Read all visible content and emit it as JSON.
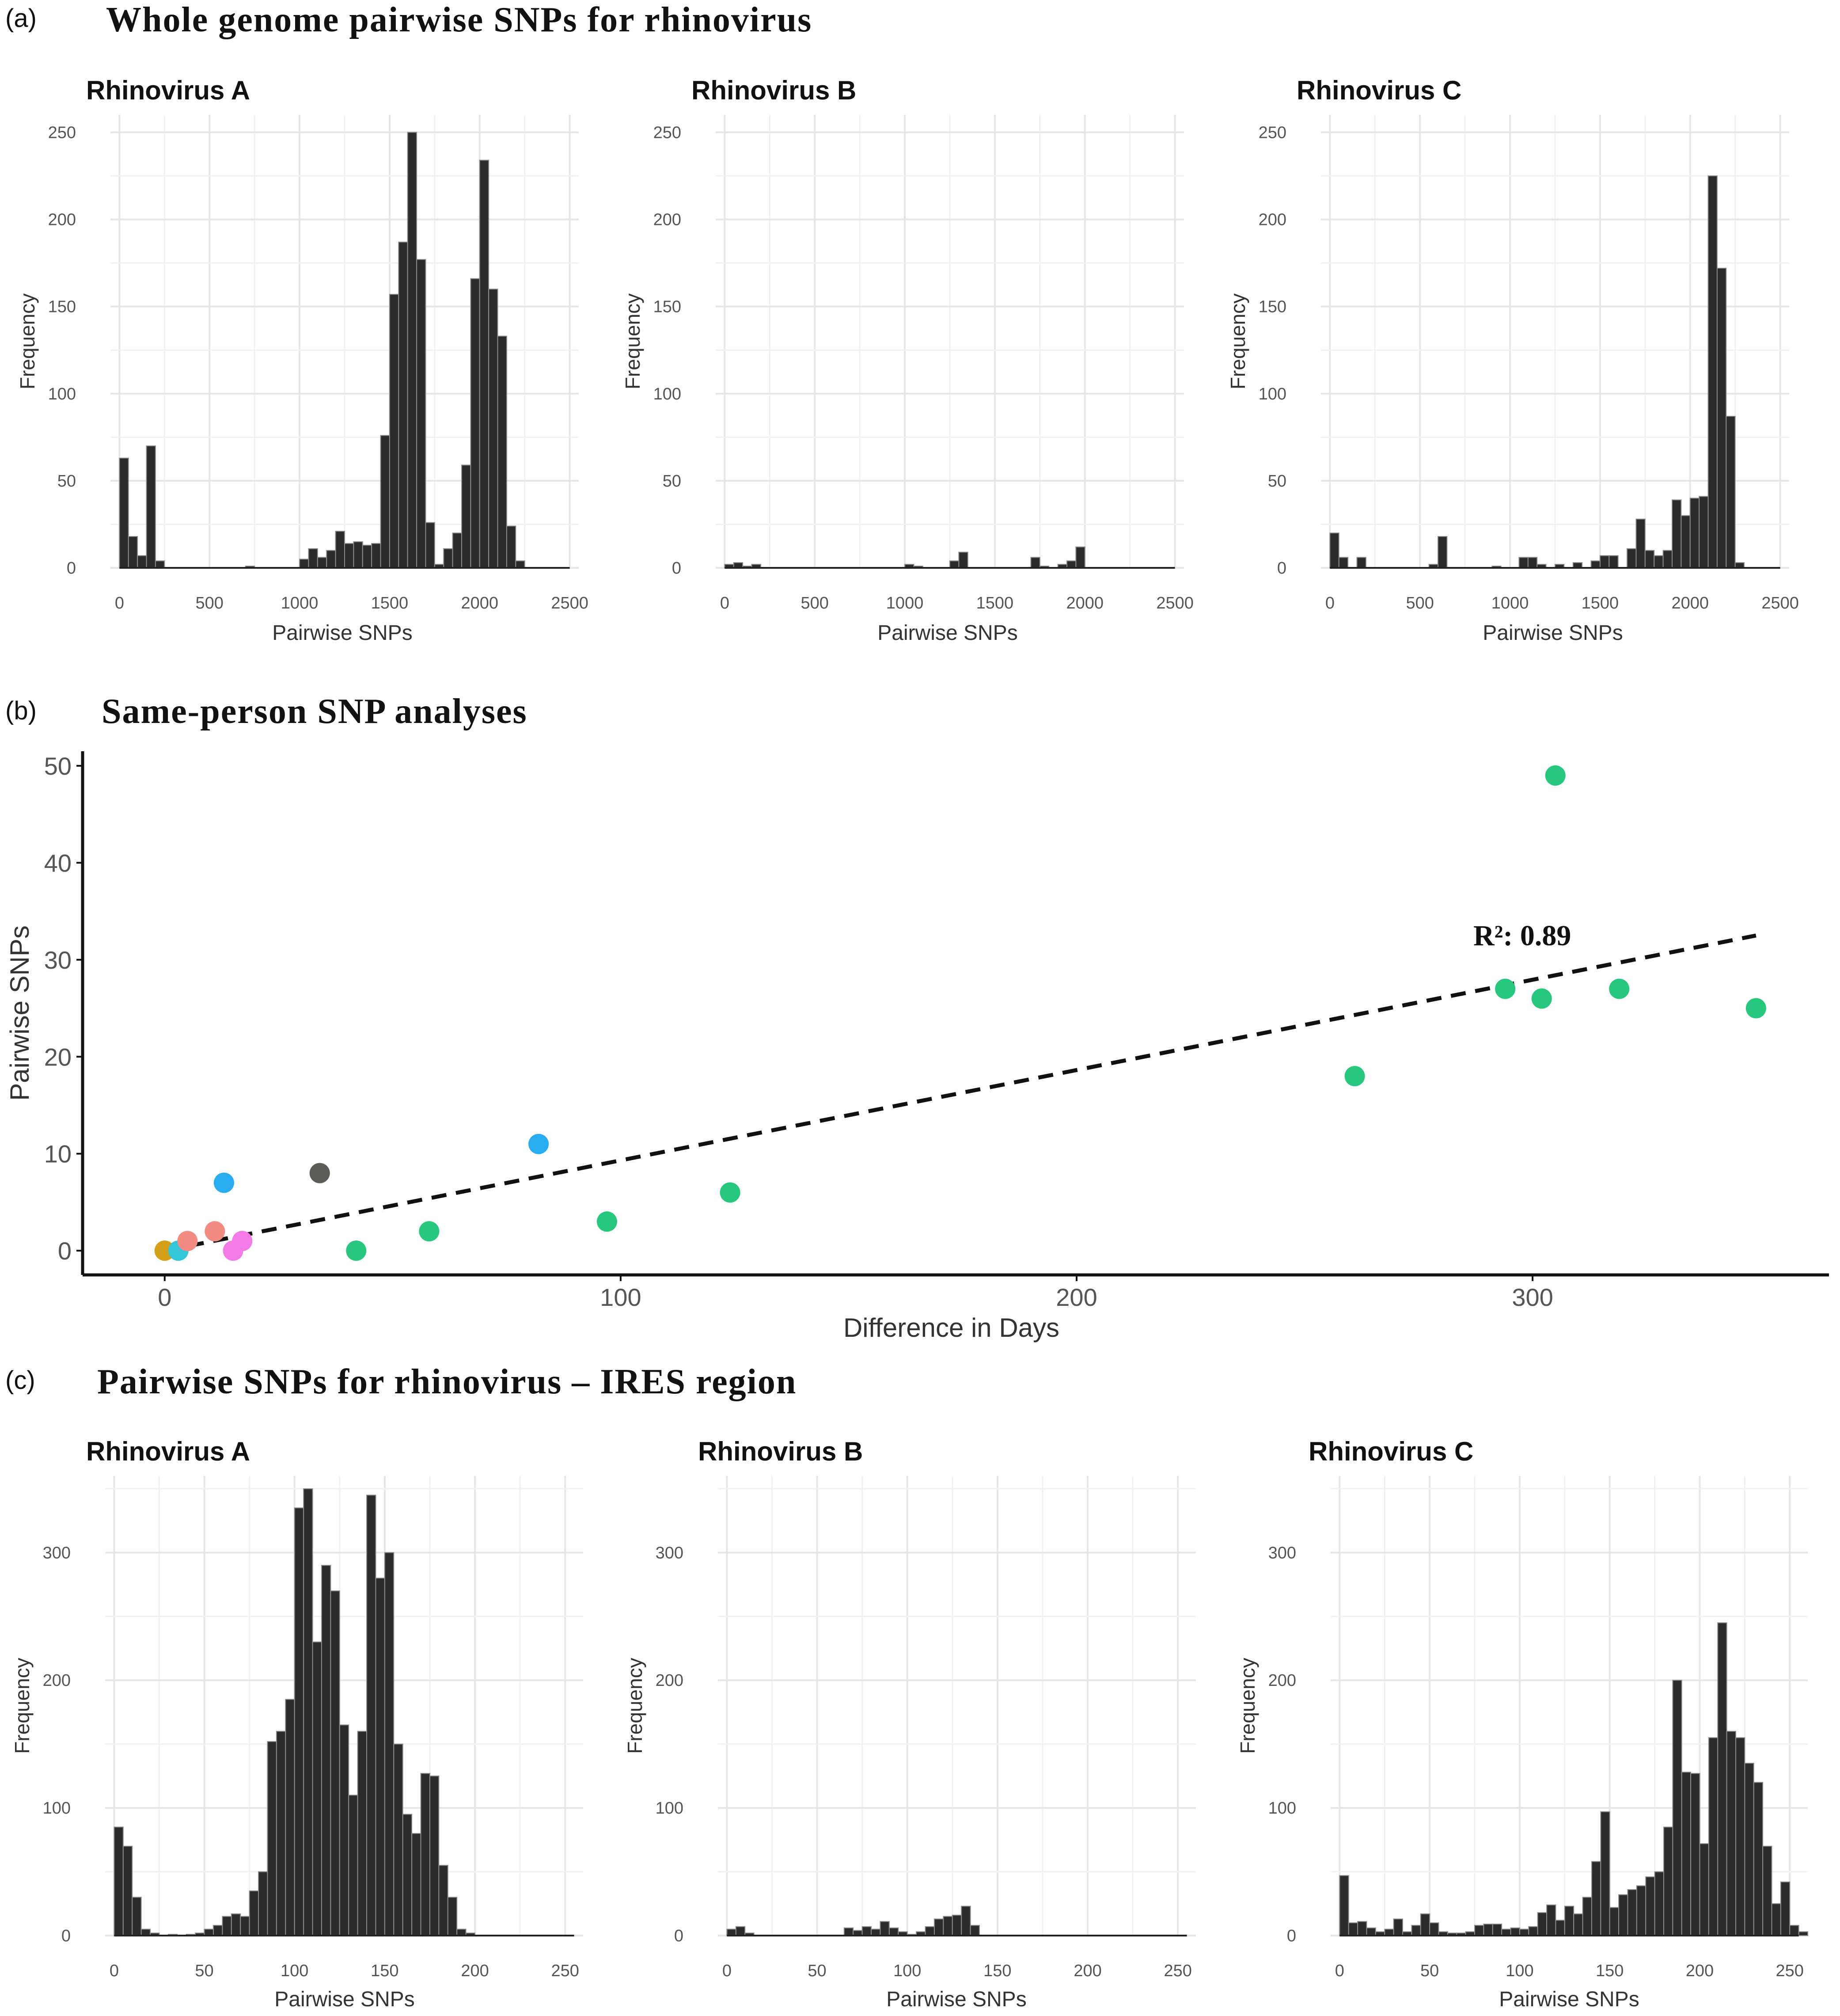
{
  "panels": {
    "a": {
      "letter": "(a)",
      "title": "Whole genome pairwise SNPs for rhinovirus"
    },
    "b": {
      "letter": "(b)",
      "title": "Same-person SNP analyses"
    },
    "c": {
      "letter": "(c)",
      "title": "Pairwise SNPs for rhinovirus – IRES region"
    }
  },
  "chart_data": [
    {
      "panel": "a",
      "type": "bar",
      "title": "Rhinovirus A",
      "xlabel": "Pairwise SNPs",
      "ylabel": "Frequency",
      "xlim": [
        -50,
        2550
      ],
      "ylim": [
        0,
        260
      ],
      "xticks": [
        0,
        500,
        1000,
        1500,
        2000,
        2500
      ],
      "yticks": [
        0,
        50,
        100,
        150,
        200,
        250
      ],
      "bin_width": 50,
      "bins": [
        [
          0,
          63
        ],
        [
          50,
          18
        ],
        [
          100,
          7
        ],
        [
          150,
          70
        ],
        [
          200,
          4
        ],
        [
          700,
          1
        ],
        [
          1000,
          5
        ],
        [
          1050,
          11
        ],
        [
          1100,
          6
        ],
        [
          1150,
          10
        ],
        [
          1200,
          21
        ],
        [
          1250,
          14
        ],
        [
          1300,
          15
        ],
        [
          1350,
          13
        ],
        [
          1400,
          14
        ],
        [
          1450,
          76
        ],
        [
          1500,
          157
        ],
        [
          1550,
          187
        ],
        [
          1600,
          250
        ],
        [
          1650,
          177
        ],
        [
          1700,
          26
        ],
        [
          1750,
          2
        ],
        [
          1800,
          11
        ],
        [
          1850,
          20
        ],
        [
          1900,
          59
        ],
        [
          1950,
          166
        ],
        [
          2000,
          234
        ],
        [
          2050,
          160
        ],
        [
          2100,
          133
        ],
        [
          2150,
          24
        ],
        [
          2200,
          4
        ]
      ]
    },
    {
      "panel": "a",
      "type": "bar",
      "title": "Rhinovirus B",
      "xlabel": "Pairwise SNPs",
      "ylabel": "Frequency",
      "xlim": [
        -50,
        2550
      ],
      "ylim": [
        0,
        260
      ],
      "xticks": [
        0,
        500,
        1000,
        1500,
        2000,
        2500
      ],
      "yticks": [
        0,
        50,
        100,
        150,
        200,
        250
      ],
      "bin_width": 50,
      "bins": [
        [
          0,
          2
        ],
        [
          50,
          3
        ],
        [
          100,
          1
        ],
        [
          150,
          2
        ],
        [
          1000,
          2
        ],
        [
          1050,
          1
        ],
        [
          1250,
          4
        ],
        [
          1300,
          9
        ],
        [
          1700,
          6
        ],
        [
          1750,
          1
        ],
        [
          1850,
          2
        ],
        [
          1900,
          4
        ],
        [
          1950,
          12
        ]
      ]
    },
    {
      "panel": "a",
      "type": "bar",
      "title": "Rhinovirus C",
      "xlabel": "Pairwise SNPs",
      "ylabel": "Frequency",
      "xlim": [
        -50,
        2550
      ],
      "ylim": [
        0,
        260
      ],
      "xticks": [
        0,
        500,
        1000,
        1500,
        2000,
        2500
      ],
      "yticks": [
        0,
        50,
        100,
        150,
        200,
        250
      ],
      "bin_width": 50,
      "bins": [
        [
          0,
          20
        ],
        [
          50,
          6
        ],
        [
          150,
          6
        ],
        [
          550,
          2
        ],
        [
          600,
          18
        ],
        [
          900,
          1
        ],
        [
          1050,
          6
        ],
        [
          1100,
          6
        ],
        [
          1150,
          2
        ],
        [
          1250,
          2
        ],
        [
          1350,
          3
        ],
        [
          1450,
          4
        ],
        [
          1500,
          7
        ],
        [
          1550,
          7
        ],
        [
          1650,
          11
        ],
        [
          1700,
          28
        ],
        [
          1750,
          10
        ],
        [
          1800,
          7
        ],
        [
          1850,
          10
        ],
        [
          1900,
          39
        ],
        [
          1950,
          30
        ],
        [
          2000,
          40
        ],
        [
          2050,
          41
        ],
        [
          2100,
          225
        ],
        [
          2150,
          172
        ],
        [
          2200,
          87
        ],
        [
          2250,
          3
        ]
      ]
    },
    {
      "panel": "b",
      "type": "scatter",
      "xlabel": "Difference in Days",
      "ylabel": "Pairwise SNPs",
      "xlim": [
        -18,
        365
      ],
      "ylim": [
        -2.5,
        51.5
      ],
      "xticks": [
        0,
        100,
        200,
        300
      ],
      "yticks": [
        0,
        10,
        20,
        30,
        40,
        50
      ],
      "annotation": {
        "text": "R²: 0.89",
        "x": 287,
        "y": 31.5
      },
      "trend_line": {
        "x": [
          0,
          349
        ],
        "y": [
          0,
          32.5
        ]
      },
      "points": [
        {
          "x": 0,
          "y": 0,
          "color": "#D4A017"
        },
        {
          "x": 3,
          "y": 0,
          "color": "#33C6D8"
        },
        {
          "x": 5,
          "y": 1,
          "color": "#F28B82"
        },
        {
          "x": 11,
          "y": 2,
          "color": "#F28B82"
        },
        {
          "x": 13,
          "y": 7,
          "color": "#29ABF2"
        },
        {
          "x": 15,
          "y": 0,
          "color": "#F27BE5"
        },
        {
          "x": 17,
          "y": 1,
          "color": "#F27BE5"
        },
        {
          "x": 34,
          "y": 8,
          "color": "#5B5B57"
        },
        {
          "x": 42,
          "y": 0,
          "color": "#27C77E"
        },
        {
          "x": 58,
          "y": 2,
          "color": "#27C77E"
        },
        {
          "x": 82,
          "y": 11,
          "color": "#29ABF2"
        },
        {
          "x": 97,
          "y": 3,
          "color": "#27C77E"
        },
        {
          "x": 124,
          "y": 6,
          "color": "#27C77E"
        },
        {
          "x": 261,
          "y": 18,
          "color": "#27C77E"
        },
        {
          "x": 294,
          "y": 27,
          "color": "#27C77E"
        },
        {
          "x": 302,
          "y": 26,
          "color": "#27C77E"
        },
        {
          "x": 305,
          "y": 49,
          "color": "#27C77E"
        },
        {
          "x": 319,
          "y": 27,
          "color": "#27C77E"
        },
        {
          "x": 349,
          "y": 25,
          "color": "#27C77E"
        }
      ]
    },
    {
      "panel": "c",
      "type": "bar",
      "title": "Rhinovirus A",
      "xlabel": "Pairwise SNPs",
      "ylabel": "Frequency",
      "xlim": [
        -5,
        260
      ],
      "ylim": [
        0,
        360
      ],
      "xticks": [
        0,
        50,
        100,
        150,
        200,
        250
      ],
      "yticks": [
        0,
        100,
        200,
        300
      ],
      "bin_width": 5,
      "bins": [
        [
          0,
          85
        ],
        [
          5,
          70
        ],
        [
          10,
          30
        ],
        [
          15,
          5
        ],
        [
          20,
          2
        ],
        [
          30,
          1
        ],
        [
          40,
          1
        ],
        [
          45,
          2
        ],
        [
          50,
          5
        ],
        [
          55,
          8
        ],
        [
          60,
          15
        ],
        [
          65,
          17
        ],
        [
          70,
          15
        ],
        [
          75,
          35
        ],
        [
          80,
          50
        ],
        [
          85,
          152
        ],
        [
          90,
          160
        ],
        [
          95,
          185
        ],
        [
          100,
          335
        ],
        [
          105,
          350
        ],
        [
          110,
          230
        ],
        [
          115,
          290
        ],
        [
          120,
          270
        ],
        [
          125,
          165
        ],
        [
          130,
          110
        ],
        [
          135,
          160
        ],
        [
          140,
          345
        ],
        [
          145,
          280
        ],
        [
          150,
          300
        ],
        [
          155,
          150
        ],
        [
          160,
          95
        ],
        [
          165,
          80
        ],
        [
          170,
          127
        ],
        [
          175,
          125
        ],
        [
          180,
          55
        ],
        [
          185,
          30
        ],
        [
          190,
          5
        ],
        [
          195,
          2
        ]
      ]
    },
    {
      "panel": "c",
      "type": "bar",
      "title": "Rhinovirus B",
      "xlabel": "Pairwise SNPs",
      "ylabel": "Frequency",
      "xlim": [
        -5,
        260
      ],
      "ylim": [
        0,
        360
      ],
      "xticks": [
        0,
        50,
        100,
        150,
        200,
        250
      ],
      "yticks": [
        0,
        100,
        200,
        300
      ],
      "bin_width": 5,
      "bins": [
        [
          0,
          5
        ],
        [
          5,
          7
        ],
        [
          10,
          2
        ],
        [
          65,
          6
        ],
        [
          70,
          4
        ],
        [
          75,
          7
        ],
        [
          80,
          5
        ],
        [
          85,
          11
        ],
        [
          90,
          6
        ],
        [
          95,
          3
        ],
        [
          100,
          1
        ],
        [
          105,
          3
        ],
        [
          110,
          7
        ],
        [
          115,
          13
        ],
        [
          120,
          15
        ],
        [
          125,
          16
        ],
        [
          130,
          23
        ],
        [
          135,
          8
        ]
      ]
    },
    {
      "panel": "c",
      "type": "bar",
      "title": "Rhinovirus C",
      "xlabel": "Pairwise SNPs",
      "ylabel": "Frequency",
      "xlim": [
        -5,
        260
      ],
      "ylim": [
        0,
        360
      ],
      "xticks": [
        0,
        50,
        100,
        150,
        200,
        250
      ],
      "yticks": [
        0,
        100,
        200,
        300
      ],
      "bin_width": 5,
      "bins": [
        [
          0,
          47
        ],
        [
          5,
          10
        ],
        [
          10,
          11
        ],
        [
          15,
          6
        ],
        [
          20,
          3
        ],
        [
          25,
          5
        ],
        [
          30,
          13
        ],
        [
          35,
          3
        ],
        [
          40,
          8
        ],
        [
          45,
          17
        ],
        [
          50,
          10
        ],
        [
          55,
          3
        ],
        [
          60,
          2
        ],
        [
          65,
          2
        ],
        [
          70,
          3
        ],
        [
          75,
          8
        ],
        [
          80,
          9
        ],
        [
          85,
          9
        ],
        [
          90,
          5
        ],
        [
          95,
          6
        ],
        [
          100,
          5
        ],
        [
          105,
          7
        ],
        [
          110,
          18
        ],
        [
          115,
          24
        ],
        [
          120,
          12
        ],
        [
          125,
          23
        ],
        [
          130,
          17
        ],
        [
          135,
          30
        ],
        [
          140,
          58
        ],
        [
          145,
          97
        ],
        [
          150,
          22
        ],
        [
          155,
          32
        ],
        [
          160,
          36
        ],
        [
          165,
          39
        ],
        [
          170,
          46
        ],
        [
          175,
          50
        ],
        [
          180,
          85
        ],
        [
          185,
          200
        ],
        [
          190,
          128
        ],
        [
          195,
          127
        ],
        [
          200,
          72
        ],
        [
          205,
          155
        ],
        [
          210,
          245
        ],
        [
          215,
          160
        ],
        [
          220,
          155
        ],
        [
          225,
          135
        ],
        [
          230,
          120
        ],
        [
          235,
          70
        ],
        [
          240,
          25
        ],
        [
          245,
          42
        ],
        [
          250,
          8
        ],
        [
          255,
          3
        ]
      ]
    }
  ]
}
